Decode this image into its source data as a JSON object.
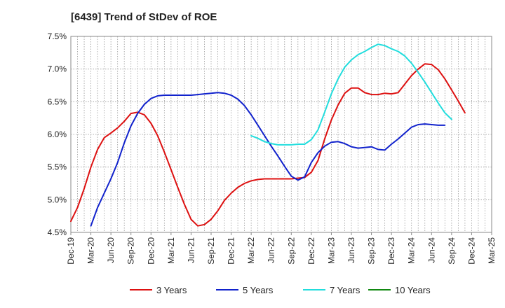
{
  "chart_data": {
    "type": "line",
    "title": "[6439]  Trend of StDev of ROE",
    "xlabel": "",
    "ylabel": "",
    "ylim": [
      4.5,
      7.5
    ],
    "y_ticks": [
      "7.5%",
      "7.0%",
      "6.5%",
      "6.0%",
      "5.5%",
      "5.0%",
      "4.5%"
    ],
    "y_tick_values": [
      7.5,
      7.0,
      6.5,
      6.0,
      5.5,
      5.0,
      4.5
    ],
    "x_ticks": [
      "Dec-19",
      "Mar-20",
      "Jun-20",
      "Sep-20",
      "Dec-20",
      "Mar-21",
      "Jun-21",
      "Sep-21",
      "Dec-21",
      "Mar-22",
      "Jun-22",
      "Sep-22",
      "Dec-22",
      "Mar-23",
      "Jun-23",
      "Sep-23",
      "Dec-23",
      "Mar-24",
      "Jun-24",
      "Sep-24",
      "Dec-24",
      "Mar-25"
    ],
    "grid": true,
    "legend_position": "bottom",
    "series": [
      {
        "name": "3 Years",
        "color": "#dd1111",
        "start_index": 0,
        "values": [
          4.67,
          4.88,
          5.17,
          5.5,
          5.77,
          5.95,
          6.02,
          6.1,
          6.2,
          6.32,
          6.34,
          6.3,
          6.17,
          5.98,
          5.73,
          5.46,
          5.19,
          4.93,
          4.7,
          4.6,
          4.62,
          4.7,
          4.83,
          4.99,
          5.1,
          5.19,
          5.25,
          5.29,
          5.31,
          5.32,
          5.32,
          5.32,
          5.32,
          5.32,
          5.33,
          5.34,
          5.42,
          5.6,
          5.93,
          6.22,
          6.45,
          6.63,
          6.71,
          6.71,
          6.64,
          6.61,
          6.61,
          6.63,
          6.62,
          6.64,
          6.77,
          6.9,
          7.0,
          7.08,
          7.07,
          6.99,
          6.85,
          6.68,
          6.51,
          6.33
        ]
      },
      {
        "name": "5 Years",
        "color": "#1122cc",
        "start_index": 3,
        "values": [
          4.6,
          4.88,
          5.1,
          5.32,
          5.57,
          5.87,
          6.13,
          6.32,
          6.46,
          6.55,
          6.59,
          6.6,
          6.6,
          6.6,
          6.6,
          6.6,
          6.61,
          6.62,
          6.63,
          6.64,
          6.63,
          6.6,
          6.54,
          6.44,
          6.3,
          6.14,
          5.98,
          5.82,
          5.67,
          5.51,
          5.36,
          5.3,
          5.35,
          5.57,
          5.72,
          5.82,
          5.88,
          5.89,
          5.86,
          5.81,
          5.79,
          5.8,
          5.81,
          5.77,
          5.76,
          5.85,
          5.93,
          6.02,
          6.11,
          6.15,
          6.16,
          6.15,
          6.14,
          6.14
        ]
      },
      {
        "name": "7 Years",
        "color": "#22dddd",
        "start_index": 27,
        "values": [
          5.98,
          5.94,
          5.89,
          5.86,
          5.84,
          5.84,
          5.84,
          5.85,
          5.85,
          5.92,
          6.07,
          6.34,
          6.62,
          6.85,
          7.03,
          7.14,
          7.22,
          7.27,
          7.33,
          7.38,
          7.36,
          7.31,
          7.27,
          7.2,
          7.09,
          6.95,
          6.8,
          6.64,
          6.48,
          6.33,
          6.23
        ]
      },
      {
        "name": "10 Years",
        "color": "#118811",
        "start_index": 0,
        "values": []
      }
    ]
  }
}
